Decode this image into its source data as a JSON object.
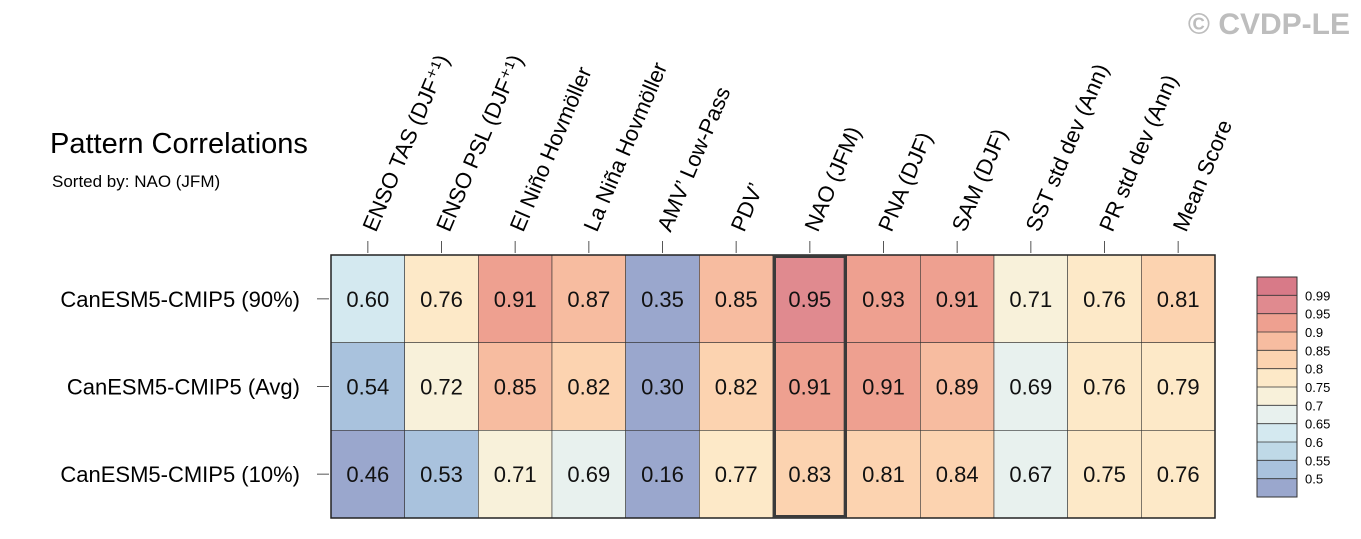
{
  "watermark": "© CVDP-LE",
  "chart_data": {
    "type": "heatmap",
    "title": "Pattern Correlations",
    "subtitle": "Sorted by: NAO (JFM)",
    "columns": [
      "ENSO TAS (DJF⁺¹)",
      "ENSO PSL (DJF⁺¹)",
      "El Niño Hovmöller",
      "La Niña Hovmöller",
      "AMV’ Low-Pass",
      "PDV’",
      "NAO (JFM)",
      "PNA (DJF)",
      "SAM (DJF)",
      "SST std dev (Ann)",
      "PR std dev (Ann)",
      "Mean Score"
    ],
    "rows": [
      "CanESM5-CMIP5 (90%)",
      "CanESM5-CMIP5 (Avg)",
      "CanESM5-CMIP5 (10%)"
    ],
    "values": [
      [
        0.6,
        0.76,
        0.91,
        0.87,
        0.35,
        0.85,
        0.95,
        0.93,
        0.91,
        0.71,
        0.76,
        0.81
      ],
      [
        0.54,
        0.72,
        0.85,
        0.82,
        0.3,
        0.82,
        0.91,
        0.91,
        0.89,
        0.69,
        0.76,
        0.79
      ],
      [
        0.46,
        0.53,
        0.71,
        0.69,
        0.16,
        0.77,
        0.83,
        0.81,
        0.84,
        0.67,
        0.75,
        0.76
      ]
    ],
    "highlighted_column": "NAO (JFM)",
    "colorbar": {
      "levels": [
        "0.5",
        "0.55",
        "0.6",
        "0.65",
        "0.7",
        "0.75",
        "0.8",
        "0.85",
        "0.9",
        "0.95",
        "0.99"
      ],
      "colors": [
        "#9aa7cd",
        "#a9c2dd",
        "#bfd9e7",
        "#d4e9f0",
        "#e8f1ee",
        "#f8f1da",
        "#fde9c8",
        "#fcd3b0",
        "#f7bca0",
        "#eea090",
        "#e08a8f",
        "#d87a88"
      ]
    }
  }
}
